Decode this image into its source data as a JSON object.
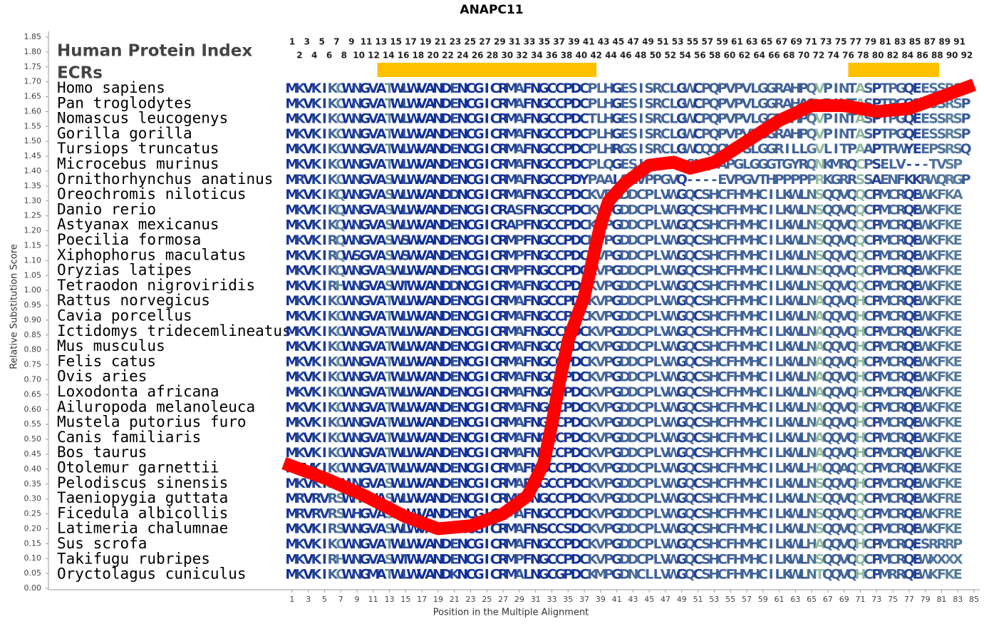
{
  "chart_data": {
    "type": "line",
    "title": "ANAPC11",
    "x_label": "Position in the Multiple Alignment",
    "y_label": "Relative Substitution Score",
    "xlim": [
      -29,
      85.7
    ],
    "ylim": [
      0,
      1.85
    ],
    "xticks": [
      1,
      3,
      5,
      7,
      9,
      11,
      13,
      15,
      17,
      19,
      21,
      23,
      25,
      27,
      29,
      31,
      33,
      35,
      37,
      39,
      41,
      43,
      45,
      47,
      49,
      51,
      53,
      55,
      57,
      59,
      61,
      63,
      65,
      67,
      69,
      71,
      73,
      75,
      77,
      79,
      81,
      83,
      85
    ],
    "yticks": [
      {
        "value": 0,
        "label": "0.00"
      },
      {
        "value": 0.05,
        "label": "0.05"
      },
      {
        "value": 0.1,
        "label": "0.10"
      },
      {
        "value": 0.15,
        "label": "0.15"
      },
      {
        "value": 0.2,
        "label": "0.20"
      },
      {
        "value": 0.25,
        "label": "0.25"
      },
      {
        "value": 0.3,
        "label": "0.30"
      },
      {
        "value": 0.35,
        "label": "0.35"
      },
      {
        "value": 0.4,
        "label": "0.40"
      },
      {
        "value": 0.45,
        "label": "0.45"
      },
      {
        "value": 0.5,
        "label": "0.50"
      },
      {
        "value": 0.55,
        "label": "0.55"
      },
      {
        "value": 0.6,
        "label": "0.60"
      },
      {
        "value": 0.65,
        "label": "0.65"
      },
      {
        "value": 0.7,
        "label": "0.70"
      },
      {
        "value": 0.75,
        "label": "0.75"
      },
      {
        "value": 0.8,
        "label": "0.80"
      },
      {
        "value": 0.85,
        "label": "0.85"
      },
      {
        "value": 0.9,
        "label": "0.90"
      },
      {
        "value": 0.95,
        "label": "0.95"
      },
      {
        "value": 1,
        "label": "1.00"
      },
      {
        "value": 1.05,
        "label": "1.05"
      },
      {
        "value": 1.1,
        "label": "1.10"
      },
      {
        "value": 1.15,
        "label": "1.15"
      },
      {
        "value": 1.2,
        "label": "1.20"
      },
      {
        "value": 1.25,
        "label": "1.25"
      },
      {
        "value": 1.3,
        "label": "1.30"
      },
      {
        "value": 1.35,
        "label": "1.35"
      },
      {
        "value": 1.4,
        "label": "1.40"
      },
      {
        "value": 1.45,
        "label": "1.45"
      },
      {
        "value": 1.5,
        "label": "1.50"
      },
      {
        "value": 1.55,
        "label": "1.55"
      },
      {
        "value": 1.6,
        "label": "1.60"
      },
      {
        "value": 1.65,
        "label": "1.65"
      },
      {
        "value": 1.7,
        "label": "1.70"
      },
      {
        "value": 1.75,
        "label": "1.75"
      },
      {
        "value": 1.8,
        "label": "1.80"
      },
      {
        "value": 1.85,
        "label": "1.85"
      }
    ],
    "x": [
      0,
      5,
      10,
      15,
      19,
      23,
      27,
      30,
      32,
      33,
      34,
      35,
      37,
      38,
      39,
      40,
      42,
      45,
      48,
      50,
      53,
      57,
      61,
      65,
      69,
      73,
      77,
      81,
      85
    ],
    "values": [
      0.42,
      0.37,
      0.31,
      0.24,
      0.2,
      0.21,
      0.25,
      0.31,
      0.42,
      0.55,
      0.7,
      0.83,
      0.98,
      1.1,
      1.22,
      1.3,
      1.36,
      1.42,
      1.43,
      1.41,
      1.43,
      1.5,
      1.57,
      1.62,
      1.62,
      1.6,
      1.61,
      1.65,
      1.69
    ],
    "color": "#ff0000",
    "index_label": "Human Protein Index",
    "ecr_label": "ECRs",
    "ecr_color": "#ffc000",
    "ecrs": [
      [
        11.5,
        38.5
      ],
      [
        69.5,
        80.7
      ]
    ],
    "human_index": [
      1,
      2,
      3,
      4,
      5,
      6,
      7,
      8,
      9,
      10,
      11,
      12,
      13,
      14,
      15,
      16,
      17,
      18,
      19,
      20,
      21,
      22,
      23,
      24,
      25,
      26,
      27,
      28,
      29,
      30,
      31,
      32,
      33,
      34,
      35,
      36,
      37,
      38,
      39,
      40,
      41,
      42,
      43,
      44,
      45,
      46,
      47,
      48,
      49,
      50,
      51,
      52,
      53,
      54,
      55,
      56,
      57,
      58,
      59,
      60,
      61,
      62,
      63,
      64,
      65,
      66,
      67,
      68,
      69,
      70,
      71,
      72,
      73,
      74,
      75,
      76,
      77,
      78,
      79,
      80,
      81,
      82,
      83,
      84,
      85,
      86,
      87,
      88,
      89,
      90,
      91,
      92
    ],
    "species": [
      "Homo sapiens",
      "Pan troglodytes",
      "Nomascus leucogenys",
      "Gorilla gorilla",
      "Tursiops truncatus",
      "Microcebus murinus",
      "Ornithorhynchus anatinus",
      "Oreochromis niloticus",
      "Danio rerio",
      "Astyanax mexicanus",
      "Poecilia formosa",
      "Xiphophorus maculatus",
      "Oryzias latipes",
      "Tetraodon nigroviridis",
      "Rattus norvegicus",
      "Cavia porcellus",
      "Ictidomys tridecemlineatus",
      "Mus musculus",
      "Felis catus",
      "Ovis aries",
      "Loxodonta africana",
      "Ailuropoda melanoleuca",
      "Mustela putorius furo",
      "Canis familiaris",
      "Bos taurus",
      "Otolemur garnettii",
      "Pelodiscus sinensis",
      "Taeniopygia guttata",
      "Ficedula albicollis",
      "Latimeria chalumnae",
      "Sus scrofa",
      "Takifugu rubripes",
      "Oryctolagus cuniculus"
    ],
    "sequences": [
      "MKVKIKCWNGVATWLWVANDENCGICRMAFNGCCPDCPLHGESISRCLGWCPQPVPVLGGRAHPQVPINTASPTPGQEESSRSP",
      "MKVKIKCWNGVATWLWVANDENCGICRMAFNGCCPDCPLHGESISRCLGWCPQPVPVLGGRAHAQVPINTASPTPGQEESSRSP",
      "MKVKIKCWNGVATWLWVANDENCGICRMAFNGCCPDCTLHGESISRCLGWCPQPVPVLGGRAHPQVPINTASPTPGQEESSRSP",
      "MKVKIKCWNGVATWLWVANDENCGICRMAFNGCCPDCPLHGESISRCLGWCPQPVPVLGGRAHPQVPINTASPTPGQEESSRSP",
      "MKVKIKCWNGVATWLWVANDENCGICRMAFNGCCPDCPLHRGSISRCLGWCQQQVPGLGGRILLGVLITPAAPTPWYEEPSRSQ",
      "MKVKIKCWNGVATWLWVANDENCGICRMAFNGCCPDCPLQGESISRHRDCLQPAPGLGGGTGYRQNKMRQCPSELV---TVSP",
      "MRVKIKCWNGVASWLWVANDENCGICRMAFNGCCPDYPAALSHVPPGVQ----EVPGVTHPPPPPRKGRRSSAENFKKRWQRGP",
      "MKVKIKQWNGVASWLWVANDDNCGICRMAFNGCCPDCKVPGDDCPLVWGQCSHCFHMHCILKWLNSQQVQQCPMCRQEWKFKA",
      "MKVKIKQWNGVASWLWVANDENCGICRASFNGCCPDCKVPGDDCPLVWGQCSHCFHMHCILKWLNSQQVQQCPMCRQEWKFKE",
      "MKVKIKQWNGVASWLWVANDENCGICRAPFNGCCPDCKVPGDDCPLVWGQCSHCFHMHCILKWLNSQQVQQCPMCRQEWKFKE",
      "MKVKIRQWNGVASWSWVANDENCGICRMPFNGCCPDCKVPGDDCPLVWGQCSHCFHMHCILKWLNSQQVQQCPMCRQEWKFKE",
      "MKVKIRQWSGVASWSWVANDENCGICRMPFNGCCPDCKVPGDDCPLVWGQCSHCFHMHCILKWLNSQQVQQCPMCRQEWKFKE",
      "MKVKIKQWNGVASWLWVANDENCGICRMPFNGCCPDCKVPGDDCPLVWGQCSHCFHMHCILKWLNSQQVQQCPMCRQEWKFKE",
      "MKVKIRHWNGVASWTWVANDDNCGICRMAFNGCCPDCKVPGDDCPLVWGQCSHCFHMHCILKWLNSQQVQQCPMCRQEWKFKE",
      "MKVKIKCWNGVATWLWVANDENCGICRMAFNGCCPDCKVPGDDCPLVWGQCSHCFHMHCILKWLNAQQVQHCPMCRQEWKFKE",
      "MKVKIKCWNGVATWLWVANDENCGICRMAFNGCCPDCKVPGDDCPLVWGQCSHCFHMHCILKWLNAQQVQHCPMCRQEWKFKE",
      "MKVKIKCWNGVATWLWVANDENCGICRMAFNGCCPDCKVPGDDCPLVWGQCSHCFHMHCILKWLNAQQVQHCPMCRQEWKFKE",
      "MKVKIKCWNGVATWLWVANDENCGICRMAFNGCCPDCKVPGDDCPLVWGQCSHCFHMHCILKWLNAQQVQHCPMCRQEWKFKE",
      "MKVKIKCWNGVATWLWVANDENCGICRMAFNGCCPDCKVPGDDCPLVWGQCSHCFHMHCILKWLNAQQVQHCPMCRQEWKFKE",
      "MKVKIKCWNGVATWLWVANDENCGICRMAFNGCCPDCKVPGDDCPLVWGQCSHCFHMHCILKWLNAQQVQHCPMCRQEWKFKE",
      "MKVKIKCWNGVATWLWVANDENCGICRMAFNGCCPDCKVPGDDCPLVWGQCSHCFHMHCILKWLNAQQVQHCPMCRQEWKFKE",
      "MKVKIKCWNGVATWLWVANDENCGICRMAFNGCCPDCKVPGDDCPLVWGQCSHCFHMHCILKWLNAQQVQHCPMCRQEWKFKE",
      "MKVKIKCWNGVATWLWVANDENCGICRMAFNGCCPDCKVPGDDCPLVWGQCSHCFHMHCILKWLNAQQVQHCPMCRQEWKFKE",
      "MKVKIKCWNGVATWLWVANDENCGICRMAFNGCCPDCKVPGDDCPLVWGQCSHCFHMHCILKWLNAQQVQHCPMCRQEWKFKE",
      "MKVKIKCWNGVATWLWVANDENCGICRMAFNGCCPDCKVPGDDCPLVWGQCSHCFHMHCILKWLNAQQVQHCPMCRQEWKFKE",
      "MKVKIKCWNGVATWLWVANDENCGICRMAFNGCCPDCKVPGDDCPLVWGQCSHCFHMHCILKWLHAQQAQQCPMCRQEWKFKE",
      "MKVKIKSWNGVASWLWVANDENCGICRMAFNGCCPDCKVPGDDCPLVWGQCSHCFHMHCILKWLNSQQVQHCPMCRQEWKFKE",
      "MRVRVRSWHGVASWLWVANDENCGICRMAFNGCCPDCKVPGDDCPLVWGQCSHCFHMHCILKWLNSQQVQQCPMCRQEWKFRE",
      "MRVRVRSWHGVASWLWVANDENCGICRMAFNGCCPDCKVPGDDCPLVWGQCSHCFHMHCILKWLNSQQVQQCPMCRQEWKFRE",
      "MKVKIRSWNGVASWLWVANDDNCGICRMAFNSCCSDCKVPGDDCPLVWGQCSHCFHMHCILKWLNSQQVQQCPMCRQEWKFKE",
      "MKVKIKCWNGVATWLWVANDENCGICRMAFNGCCPDCKVPGDDCPLVWGQCSHCFHMHCILKWLHAQQVQHCPMCRQESRRRP",
      "MKVKIRHWNGVASWTWVANDENCGICRMPFNGCCPDCKVPGDDCPLVWGQCSHCFHMHCILKWLNSQQVQQCPMCRQEWXXXX",
      "MKVKIKCWNGMATWLWVANDKNCGICRMALNGCGPDCKMPGDNCLLVWGQCSHCFHMHCILKWLNTQQVQHCPMRRQEWKFKE"
    ]
  }
}
